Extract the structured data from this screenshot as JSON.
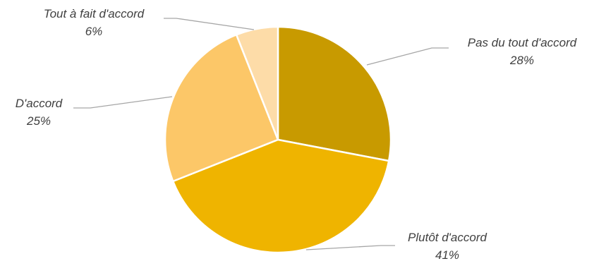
{
  "chart_data": {
    "type": "pie",
    "slices": [
      {
        "label": "Pas du tout d'accord",
        "value": 28,
        "value_label": "28%",
        "color": "#C89A00"
      },
      {
        "label": "Plutôt d'accord",
        "value": 41,
        "value_label": "41%",
        "color": "#EFB400"
      },
      {
        "label": "D'accord",
        "value": 25,
        "value_label": "25%",
        "color": "#FCC768"
      },
      {
        "label": "Tout à fait d'accord",
        "value": 6,
        "value_label": "6%",
        "color": "#FDDCA8"
      }
    ],
    "start": "12 o'clock",
    "direction": "clockwise",
    "legend": "none",
    "label_style": "outside with leader lines, italic"
  }
}
